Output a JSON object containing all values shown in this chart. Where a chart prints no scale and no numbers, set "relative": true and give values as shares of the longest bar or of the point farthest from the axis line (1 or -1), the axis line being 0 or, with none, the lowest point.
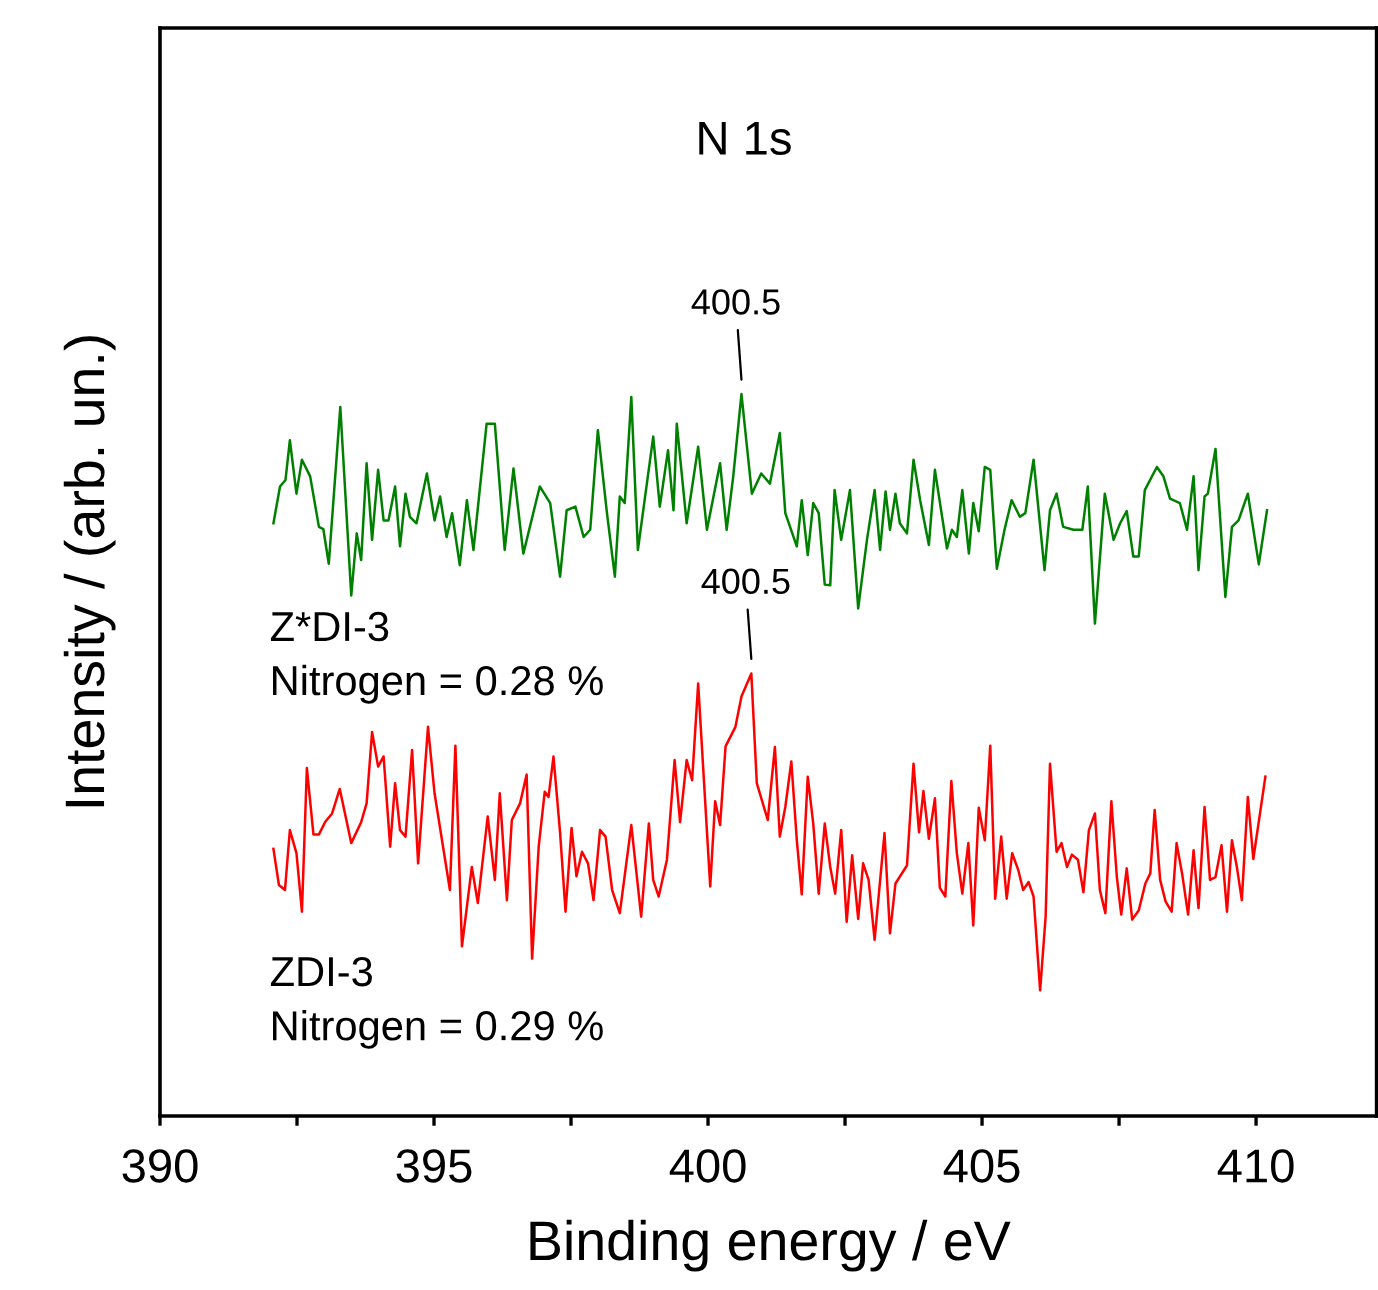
{
  "chart_data": {
    "type": "line",
    "relative": true,
    "xlabel": "Binding energy / eV",
    "ylabel": "Intensity / (arb. un.)",
    "title": "N 1s",
    "xlim": [
      390,
      412.2
    ],
    "xticks": [
      390,
      {
        "value": 392.5,
        "label": null
      },
      395,
      {
        "value": 397.5,
        "label": null
      },
      400,
      {
        "value": 402.5,
        "label": null
      },
      405,
      {
        "value": 407.5,
        "label": null
      },
      410
    ],
    "tick_labels": "x",
    "legend": false,
    "marker": "none",
    "line_style": "solid",
    "series": [
      {
        "name": "Z*DI-3",
        "color": "#008000",
        "x": [
          392.07,
          392.19,
          392.29,
          392.37,
          392.49,
          392.59,
          392.74,
          392.9,
          392.98,
          393.08,
          393.29,
          393.49,
          393.59,
          393.67,
          393.77,
          393.87,
          393.98,
          394.08,
          394.17,
          394.29,
          394.38,
          394.48,
          394.56,
          394.68,
          394.87,
          395.01,
          395.11,
          395.23,
          395.33,
          395.47,
          395.6,
          395.72,
          395.96,
          396.11,
          396.29,
          396.45,
          396.63,
          396.93,
          397.12,
          397.3,
          397.42,
          397.58,
          397.73,
          397.85,
          397.99,
          398.15,
          398.3,
          398.39,
          398.48,
          398.6,
          398.72,
          399.0,
          399.12,
          399.27,
          399.37,
          399.43,
          399.61,
          399.82,
          399.98,
          400.22,
          400.34,
          400.46,
          400.61,
          400.8,
          400.97,
          401.13,
          401.31,
          401.41,
          401.62,
          401.71,
          401.82,
          401.92,
          402.02,
          402.13,
          402.23,
          402.31,
          402.43,
          402.59,
          402.74,
          402.9,
          403.04,
          403.14,
          403.24,
          403.32,
          403.42,
          403.5,
          403.63,
          403.75,
          403.87,
          404.03,
          404.14,
          404.36,
          404.45,
          404.54,
          404.64,
          404.76,
          404.84,
          404.94,
          405.05,
          405.15,
          405.27,
          405.41,
          405.54,
          405.69,
          405.79,
          405.94,
          406.14,
          406.24,
          406.36,
          406.48,
          406.67,
          406.83,
          406.93,
          407.06,
          407.24,
          407.4,
          407.52,
          407.64,
          407.76,
          407.86,
          407.97,
          408.19,
          408.31,
          408.43,
          408.61,
          408.74,
          408.86,
          408.95,
          409.06,
          409.12,
          409.26,
          409.44,
          409.56,
          409.68,
          409.85,
          410.05,
          410.2
        ],
        "values": [
          0.821,
          0.872,
          0.881,
          0.936,
          0.862,
          0.909,
          0.886,
          0.816,
          0.813,
          0.765,
          0.982,
          0.721,
          0.807,
          0.77,
          0.904,
          0.798,
          0.895,
          0.825,
          0.825,
          0.872,
          0.789,
          0.862,
          0.83,
          0.821,
          0.89,
          0.825,
          0.858,
          0.802,
          0.835,
          0.763,
          0.853,
          0.784,
          0.959,
          0.959,
          0.784,
          0.897,
          0.779,
          0.872,
          0.849,
          0.747,
          0.839,
          0.844,
          0.802,
          0.812,
          0.95,
          0.839,
          0.747,
          0.858,
          0.849,
          0.996,
          0.784,
          0.941,
          0.844,
          0.922,
          0.839,
          0.959,
          0.821,
          0.927,
          0.812,
          0.904,
          0.812,
          0.886,
          1.0,
          0.862,
          0.89,
          0.876,
          0.946,
          0.835,
          0.789,
          0.853,
          0.777,
          0.849,
          0.835,
          0.736,
          0.735,
          0.867,
          0.798,
          0.867,
          0.703,
          0.798,
          0.867,
          0.784,
          0.865,
          0.812,
          0.862,
          0.821,
          0.807,
          0.909,
          0.853,
          0.791,
          0.895,
          0.786,
          0.812,
          0.802,
          0.867,
          0.779,
          0.849,
          0.81,
          0.899,
          0.895,
          0.758,
          0.812,
          0.853,
          0.83,
          0.835,
          0.909,
          0.756,
          0.839,
          0.862,
          0.816,
          0.812,
          0.812,
          0.872,
          0.682,
          0.862,
          0.798,
          0.821,
          0.838,
          0.775,
          0.775,
          0.867,
          0.899,
          0.886,
          0.855,
          0.849,
          0.812,
          0.886,
          0.756,
          0.858,
          0.862,
          0.924,
          0.719,
          0.816,
          0.825,
          0.862,
          0.764,
          0.839
        ]
      },
      {
        "name": "ZDI-3",
        "color": "#ff0000",
        "x": [
          392.07,
          392.17,
          392.28,
          392.37,
          392.49,
          392.59,
          392.68,
          392.8,
          392.9,
          393.02,
          393.14,
          393.28,
          393.49,
          393.67,
          393.77,
          393.87,
          393.98,
          394.08,
          394.2,
          394.29,
          394.38,
          394.48,
          394.6,
          394.71,
          394.89,
          395.01,
          395.29,
          395.39,
          395.51,
          395.69,
          395.8,
          395.98,
          396.11,
          396.2,
          396.33,
          396.42,
          396.57,
          396.69,
          396.79,
          396.91,
          397.02,
          397.09,
          397.18,
          397.3,
          397.4,
          397.51,
          397.6,
          397.7,
          397.81,
          397.91,
          398.03,
          398.13,
          398.25,
          398.39,
          398.6,
          398.78,
          398.92,
          399.0,
          399.1,
          399.25,
          399.39,
          399.49,
          399.61,
          399.71,
          399.82,
          400.04,
          400.13,
          400.22,
          400.32,
          400.5,
          400.61,
          400.79,
          400.89,
          401.09,
          401.22,
          401.31,
          401.41,
          401.52,
          401.62,
          401.71,
          401.82,
          401.92,
          402.02,
          402.13,
          402.23,
          402.32,
          402.43,
          402.53,
          402.63,
          402.74,
          402.83,
          402.93,
          403.04,
          403.22,
          403.32,
          403.42,
          403.63,
          403.75,
          403.85,
          403.93,
          404.03,
          404.14,
          404.23,
          404.33,
          404.44,
          404.54,
          404.64,
          404.75,
          404.84,
          404.94,
          405.05,
          405.15,
          405.24,
          405.35,
          405.45,
          405.55,
          405.66,
          405.75,
          405.85,
          405.94,
          406.06,
          406.16,
          406.24,
          406.36,
          406.45,
          406.55,
          406.64,
          406.75,
          406.85,
          406.95,
          407.06,
          407.15,
          407.25,
          407.36,
          407.46,
          407.54,
          407.64,
          407.74,
          407.86,
          407.98,
          408.07,
          408.15,
          408.25,
          408.35,
          408.46,
          408.55,
          408.65,
          408.76,
          408.86,
          408.95,
          409.06,
          409.16,
          409.26,
          409.37,
          409.47,
          409.56,
          409.65,
          409.74,
          409.85,
          409.95,
          410.17
        ],
        "values": [
          0.37,
          0.32,
          0.313,
          0.396,
          0.364,
          0.283,
          0.482,
          0.39,
          0.39,
          0.408,
          0.419,
          0.453,
          0.378,
          0.407,
          0.433,
          0.532,
          0.484,
          0.498,
          0.373,
          0.461,
          0.396,
          0.387,
          0.507,
          0.35,
          0.539,
          0.447,
          0.313,
          0.513,
          0.235,
          0.345,
          0.295,
          0.415,
          0.327,
          0.447,
          0.299,
          0.41,
          0.433,
          0.473,
          0.218,
          0.373,
          0.449,
          0.442,
          0.498,
          0.393,
          0.283,
          0.399,
          0.332,
          0.366,
          0.35,
          0.299,
          0.396,
          0.387,
          0.313,
          0.281,
          0.403,
          0.276,
          0.405,
          0.327,
          0.304,
          0.355,
          0.493,
          0.407,
          0.493,
          0.465,
          0.599,
          0.318,
          0.436,
          0.403,
          0.512,
          0.539,
          0.581,
          0.613,
          0.461,
          0.41,
          0.511,
          0.387,
          0.428,
          0.491,
          0.382,
          0.307,
          0.47,
          0.405,
          0.308,
          0.405,
          0.345,
          0.308,
          0.396,
          0.269,
          0.361,
          0.273,
          0.35,
          0.327,
          0.244,
          0.392,
          0.253,
          0.322,
          0.347,
          0.488,
          0.393,
          0.45,
          0.384,
          0.44,
          0.316,
          0.304,
          0.464,
          0.364,
          0.308,
          0.378,
          0.264,
          0.427,
          0.382,
          0.513,
          0.301,
          0.387,
          0.301,
          0.364,
          0.341,
          0.313,
          0.324,
          0.304,
          0.174,
          0.276,
          0.488,
          0.366,
          0.378,
          0.345,
          0.362,
          0.355,
          0.31,
          0.396,
          0.419,
          0.313,
          0.281,
          0.436,
          0.331,
          0.279,
          0.343,
          0.272,
          0.285,
          0.322,
          0.336,
          0.424,
          0.327,
          0.297,
          0.283,
          0.378,
          0.336,
          0.279,
          0.368,
          0.288,
          0.428,
          0.327,
          0.331,
          0.375,
          0.283,
          0.382,
          0.345,
          0.299,
          0.442,
          0.356,
          0.47
        ]
      }
    ],
    "annotations": [
      {
        "text": "400.5",
        "x": 400.61,
        "y": 1.0
      },
      {
        "text": "400.5",
        "x": 400.79,
        "y": 0.613
      },
      "Nitrogen = 0.28 %",
      "Nitrogen = 0.29 %"
    ]
  }
}
